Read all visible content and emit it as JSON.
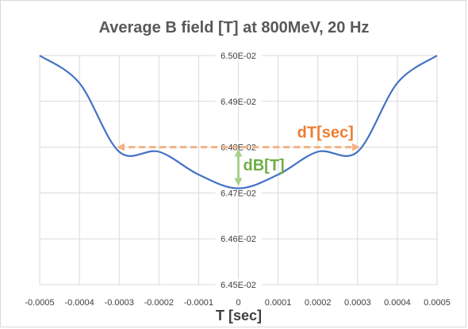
{
  "chart_data": {
    "type": "line",
    "title": "Average B field [T] at 800MeV, 20 Hz",
    "xlabel": "T [sec]",
    "ylabel": "",
    "xlim": [
      -0.0005,
      0.0005
    ],
    "ylim": [
      0.0645,
      0.065
    ],
    "x_ticks": [
      "-0.0005",
      "-0.0004",
      "-0.0003",
      "-0.0002",
      "-0.0001",
      "0",
      "0.0001",
      "0.0002",
      "0.0003",
      "0.0004",
      "0.0005"
    ],
    "y_ticks": [
      "6.50E-02",
      "6.49E-02",
      "6.48E-02",
      "6.47E-02",
      "6.46E-02",
      "6.45E-02"
    ],
    "grid": true,
    "series": [
      {
        "color": "#4472c4",
        "x": [
          -0.0005,
          -0.0004,
          -0.0003,
          -0.0002,
          -0.0001,
          0,
          0.0001,
          0.0002,
          0.0003,
          0.0004,
          0.0005
        ],
        "y": [
          0.065,
          0.06494,
          0.06479,
          0.06479,
          0.06474,
          0.06471,
          0.06474,
          0.06479,
          0.06479,
          0.06494,
          0.065
        ]
      }
    ],
    "annotations": [
      {
        "label": "dT[sec]",
        "color": "#ed7d31",
        "kind": "double-arrow-horizontal",
        "x_from": -0.00031,
        "x_to": 0.00031,
        "y": 0.0648
      },
      {
        "label": "dB[T]",
        "color": "#70ad47",
        "kind": "double-arrow-vertical",
        "x": 0,
        "y_from": 0.064712,
        "y_to": 0.0648
      }
    ]
  }
}
